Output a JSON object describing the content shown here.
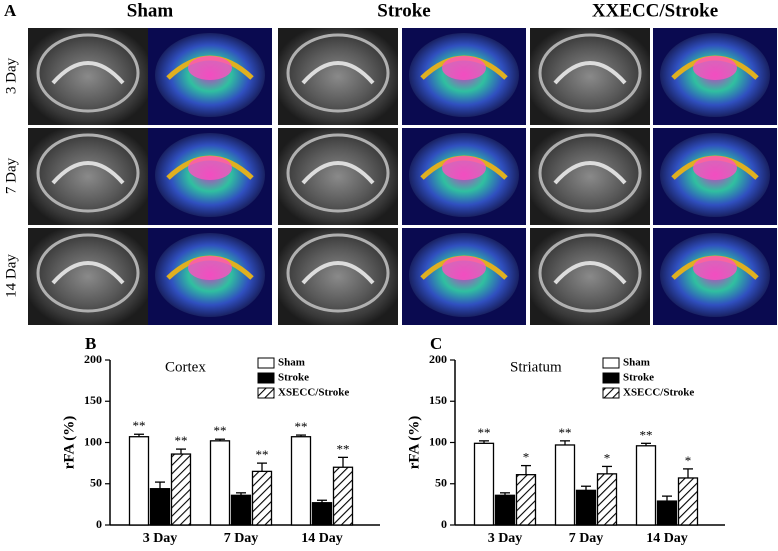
{
  "panel_a": {
    "letter": "A",
    "columns": [
      "Sham",
      "Stroke",
      "XXECC/Stroke"
    ],
    "rows": [
      "3 Day",
      "7 Day",
      "14 Day"
    ]
  },
  "chart_data": [
    {
      "type": "bar",
      "panel": "B",
      "title": "Cortex",
      "ylabel": "rFA (%)",
      "categories": [
        "3 Day",
        "7 Day",
        "14 Day"
      ],
      "ylim": [
        0,
        200
      ],
      "yticks": [
        0,
        50,
        100,
        150,
        200
      ],
      "series": [
        {
          "name": "Sham",
          "color": "#ffffff",
          "values": [
            107,
            102,
            107
          ],
          "errors": [
            3,
            2,
            2
          ],
          "labels": [
            "**",
            "**",
            "**"
          ]
        },
        {
          "name": "Stroke",
          "color": "#000000",
          "values": [
            44,
            36,
            27
          ],
          "errors": [
            8,
            3,
            3
          ]
        },
        {
          "name": "XSECC/Stroke",
          "color": "#ffffff",
          "hatch": true,
          "values": [
            86,
            65,
            70
          ],
          "errors": [
            6,
            10,
            12
          ],
          "labels": [
            "**",
            "**",
            "**"
          ]
        }
      ]
    },
    {
      "type": "bar",
      "panel": "C",
      "title": "Striatum",
      "ylabel": "rFA (%)",
      "categories": [
        "3 Day",
        "7 Day",
        "14 Day"
      ],
      "ylim": [
        0,
        200
      ],
      "yticks": [
        0,
        50,
        100,
        150,
        200
      ],
      "series": [
        {
          "name": "Sham",
          "color": "#ffffff",
          "values": [
            99,
            97,
            96
          ],
          "errors": [
            3,
            5,
            3
          ],
          "labels": [
            "**",
            "**",
            "**"
          ]
        },
        {
          "name": "Stroke",
          "color": "#000000",
          "values": [
            36,
            42,
            29
          ],
          "errors": [
            3,
            5,
            6
          ]
        },
        {
          "name": "XSECC/Stroke",
          "color": "#ffffff",
          "hatch": true,
          "values": [
            61,
            62,
            57
          ],
          "errors": [
            11,
            9,
            11
          ],
          "labels": [
            "*",
            "*",
            "*"
          ]
        }
      ]
    }
  ]
}
